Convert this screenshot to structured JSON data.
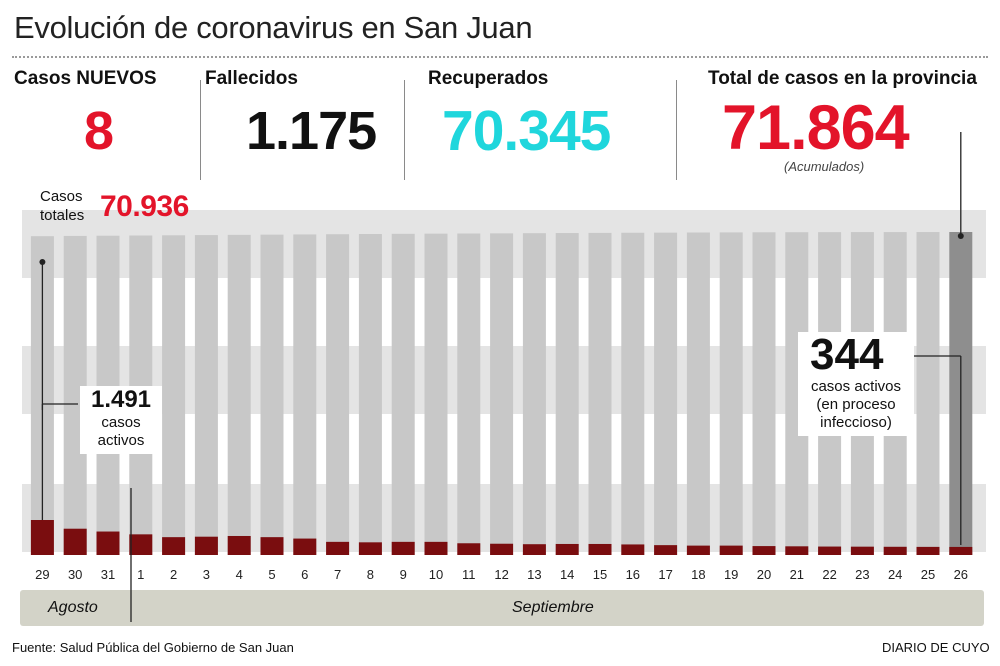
{
  "title": "Evolución de coronavirus en San Juan",
  "stats": {
    "new_cases_label": "Casos NUEVOS",
    "new_cases_value": "8",
    "deaths_label": "Fallecidos",
    "deaths_value": "1.175",
    "recovered_label": "Recuperados",
    "recovered_value": "70.345",
    "total_label": "Total de casos en la provincia",
    "total_value": "71.864",
    "total_note": "(Acumulados)"
  },
  "colors": {
    "red": "#e3142a",
    "cyan": "#1fd6dc",
    "bar_total": "#c8c8c8",
    "bar_total_last": "#8e8e8e",
    "bar_active": "#7a0d0f",
    "band": "#e4e4e4",
    "month_strip": "#d3d3c8"
  },
  "annotations": {
    "start_total_label": "Casos totales",
    "start_total_value": "70.936",
    "start_active_value": "1.491",
    "start_active_text": "casos activos",
    "end_active_value": "344",
    "end_active_text": "casos activos (en proceso infeccioso)"
  },
  "months": {
    "first": "Agosto",
    "second": "Septiembre"
  },
  "footer": {
    "source": "Fuente: Salud Pública del Gobierno de San Juan",
    "credit": "DIARIO DE CUYO"
  },
  "chart_data": {
    "type": "bar",
    "categories": [
      "29",
      "30",
      "31",
      "1",
      "2",
      "3",
      "4",
      "5",
      "6",
      "7",
      "8",
      "9",
      "10",
      "11",
      "12",
      "13",
      "14",
      "15",
      "16",
      "17",
      "18",
      "19",
      "20",
      "21",
      "22",
      "23",
      "24",
      "25",
      "26"
    ],
    "series": [
      {
        "name": "Casos totales",
        "values": [
          70936,
          70989,
          71038,
          71087,
          71131,
          71175,
          71228,
          71277,
          71322,
          71369,
          71414,
          71457,
          71496,
          71532,
          71567,
          71601,
          71634,
          71666,
          71697,
          71725,
          71751,
          71776,
          71797,
          71816,
          71831,
          71843,
          71851,
          71856,
          71864
        ]
      },
      {
        "name": "casos activos",
        "values": [
          1491,
          1120,
          1000,
          880,
          760,
          780,
          810,
          760,
          700,
          560,
          540,
          560,
          560,
          500,
          480,
          460,
          470,
          470,
          450,
          420,
          400,
          400,
          380,
          370,
          360,
          355,
          350,
          346,
          344
        ]
      }
    ]
  }
}
